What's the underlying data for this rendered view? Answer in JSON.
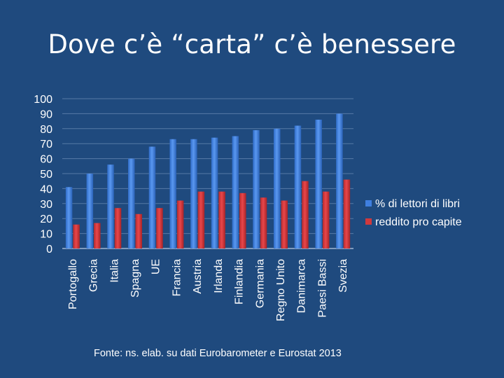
{
  "slide": {
    "title": "Dove c’è “carta” c’è benessere",
    "source": "Fonte: ns. elab. su dati Eurobarometer e Eurostat 2013"
  },
  "chart_data": {
    "type": "bar",
    "categories": [
      "Portogallo",
      "Grecia",
      "Italia",
      "Spagna",
      "UE",
      "Francia",
      "Austria",
      "Irlanda",
      "Finlandia",
      "Germania",
      "Regno Unito",
      "Danimarca",
      "Paesi Bassi",
      "Svezia"
    ],
    "series": [
      {
        "name": "% di lettori di libri",
        "color": "#3f7fe0",
        "values": [
          41,
          50,
          56,
          60,
          68,
          73,
          73,
          74,
          75,
          79,
          80,
          82,
          86,
          90
        ]
      },
      {
        "name": "reddito pro capite",
        "color": "#d0393d",
        "values": [
          16,
          17,
          27,
          23,
          27,
          32,
          38,
          38,
          37,
          34,
          32,
          45,
          38,
          46
        ]
      }
    ],
    "yticks": [
      0,
      10,
      20,
      30,
      40,
      50,
      60,
      70,
      80,
      90,
      100
    ],
    "ylim": [
      0,
      100
    ],
    "grid": true,
    "legend": "right"
  }
}
